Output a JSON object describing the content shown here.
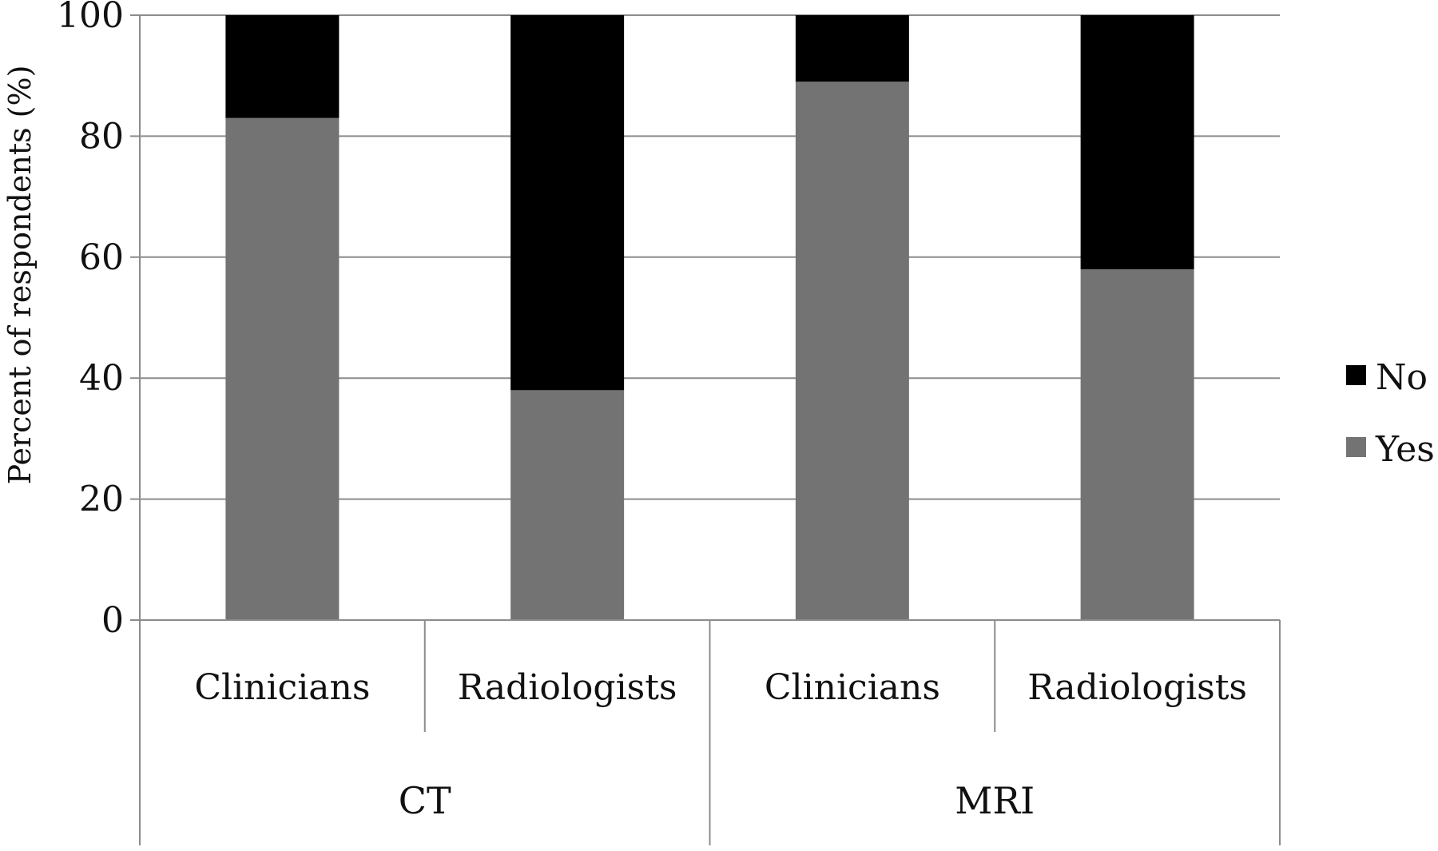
{
  "chart_data": {
    "type": "bar",
    "stacked": true,
    "title": "",
    "xlabel": "",
    "ylabel": "Percent of respondents (%)",
    "ylim": [
      0,
      100
    ],
    "yticks": [
      0,
      20,
      40,
      60,
      80,
      100
    ],
    "grid": true,
    "legend_position": "right",
    "groups": [
      {
        "label": "CT",
        "categories": [
          "Clinicians",
          "Radiologists"
        ]
      },
      {
        "label": "MRI",
        "categories": [
          "Clinicians",
          "Radiologists"
        ]
      }
    ],
    "categories": [
      "Clinicians",
      "Radiologists",
      "Clinicians",
      "Radiologists"
    ],
    "series": [
      {
        "name": "Yes",
        "color": "#737373",
        "values": [
          83,
          38,
          89,
          58
        ]
      },
      {
        "name": "No",
        "color": "#000000",
        "values": [
          17,
          62,
          11,
          42
        ]
      }
    ],
    "legend_order": [
      "No",
      "Yes"
    ]
  }
}
